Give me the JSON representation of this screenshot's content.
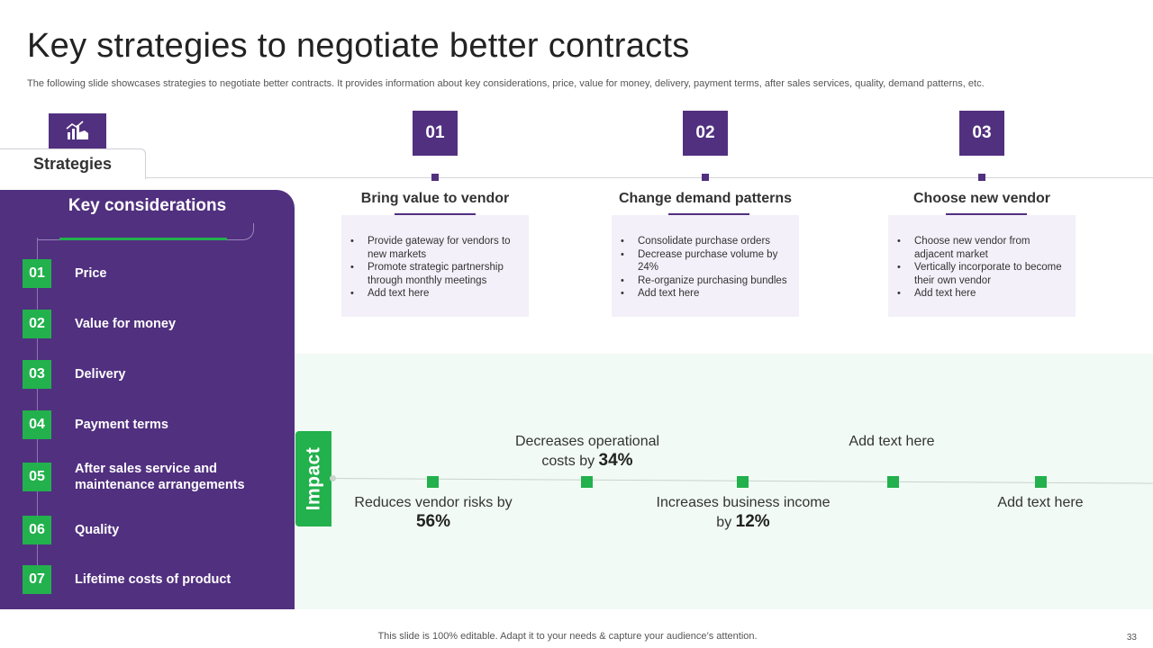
{
  "title": "Key strategies to negotiate better contracts",
  "subtitle": "The following slide showcases strategies to negotiate better contracts. It provides information about key considerations, price, value for money, delivery,  payment terms, after sales services, quality, demand patterns, etc.",
  "strategies_tab": "Strategies",
  "key_considerations": {
    "title": "Key considerations",
    "items": [
      {
        "num": "01",
        "label": "Price"
      },
      {
        "num": "02",
        "label": "Value for money"
      },
      {
        "num": "03",
        "label": "Delivery"
      },
      {
        "num": "04",
        "label": "Payment terms"
      },
      {
        "num": "05",
        "label": "After sales service and maintenance arrangements"
      },
      {
        "num": "06",
        "label": "Quality"
      },
      {
        "num": "07",
        "label": "Lifetime costs of product"
      }
    ]
  },
  "strategies": [
    {
      "num": "01",
      "title": "Bring value to vendor",
      "bullets": [
        "Provide gateway for vendors to new markets",
        "Promote strategic partnership through monthly meetings",
        "Add text here"
      ]
    },
    {
      "num": "02",
      "title": "Change demand patterns",
      "bullets": [
        "Consolidate purchase orders",
        "Decrease purchase volume  by 24%",
        "Re-organize purchasing bundles",
        "Add text here"
      ]
    },
    {
      "num": "03",
      "title": "Choose new vendor",
      "bullets": [
        "Choose new vendor from adjacent market",
        "Vertically incorporate to become their own vendor",
        "Add text here"
      ]
    }
  ],
  "impact": {
    "label": "Impact",
    "points": [
      {
        "text": "Reduces vendor risks by",
        "value": "56%"
      },
      {
        "text": "Decreases operational costs by",
        "value": "34%"
      },
      {
        "text": "Increases business income by",
        "value": "12%"
      },
      {
        "text": "Add text here",
        "value": ""
      },
      {
        "text": "Add text here",
        "value": ""
      }
    ]
  },
  "footer": "This slide is 100% editable. Adapt it to your needs & capture your audience’s attention.",
  "page_number": "33",
  "colors": {
    "purple": "#51307f",
    "green": "#22b14c",
    "light_purple": "#f3f0f9",
    "light_green": "#f1faf4"
  },
  "icons": {
    "strategies": "chart-hand-icon"
  }
}
